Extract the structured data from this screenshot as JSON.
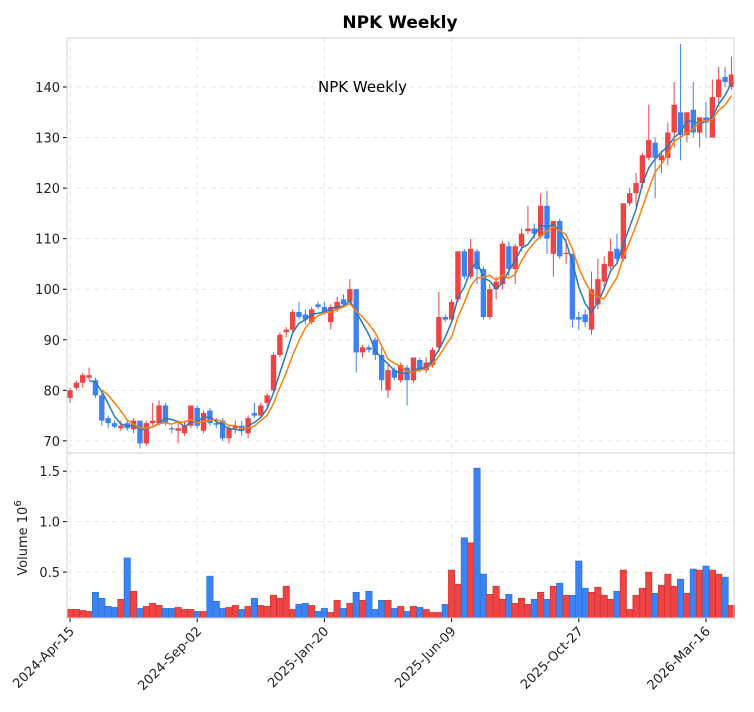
{
  "chart_data": {
    "type": "candlestick",
    "title": "NPK  Weekly",
    "annotation": "NPK  Weekly",
    "interval": "weekly",
    "start_date": "2024-04-15",
    "up_color": "#ef4444",
    "down_color": "#3b82f6",
    "ma_colors": [
      "#2a7ab9",
      "#ff7f0e"
    ],
    "ma_windows": [
      4,
      6
    ],
    "price_ylim": [
      67.6,
      149.7
    ],
    "price_yticks": [
      70,
      80,
      90,
      100,
      110,
      120,
      130,
      140
    ],
    "volume_ylabel": "Volume  10",
    "volume_ylabel_exp": "6",
    "volume_ylim": [
      0.045,
      1.68
    ],
    "volume_yticks": [
      0.5,
      1.0,
      1.5
    ],
    "volume_ytick_labels": [
      "0.5",
      "1.0",
      "1.5"
    ],
    "xticks": [
      {
        "index": 0,
        "label": "2024-Apr-15"
      },
      {
        "index": 20,
        "label": "2024-Sep-02"
      },
      {
        "index": 40,
        "label": "2025-Jan-20"
      },
      {
        "index": 60,
        "label": "2025-Jun-09"
      },
      {
        "index": 80,
        "label": "2025-Oct-27"
      },
      {
        "index": 100,
        "label": "2026-Mar-16"
      }
    ],
    "grid": true,
    "ohlc": [
      [
        78.5,
        80.5,
        77.5,
        80
      ],
      [
        80.5,
        82,
        80,
        81.5
      ],
      [
        81.5,
        83.5,
        80.5,
        83
      ],
      [
        82.5,
        84.5,
        82,
        83
      ],
      [
        82,
        82.5,
        78.5,
        79
      ],
      [
        79,
        79.5,
        73,
        74
      ],
      [
        74.5,
        75,
        72.5,
        73.5
      ],
      [
        73.5,
        74,
        72.5,
        72.8
      ],
      [
        72.5,
        74,
        72,
        73
      ],
      [
        73.5,
        74,
        72,
        72.5
      ],
      [
        72.3,
        74.5,
        71.5,
        74
      ],
      [
        74,
        74,
        68.5,
        69.5
      ],
      [
        69.5,
        74,
        69,
        73.5
      ],
      [
        73.5,
        77.5,
        73,
        74
      ],
      [
        73.5,
        78,
        73,
        77
      ],
      [
        77,
        77.5,
        73,
        73.5
      ],
      [
        72.5,
        73,
        71.5,
        72.3
      ],
      [
        72,
        74,
        69.5,
        72.5
      ],
      [
        71.5,
        74,
        71,
        73
      ],
      [
        73,
        77,
        72.5,
        77
      ],
      [
        76.5,
        77,
        72.5,
        73
      ],
      [
        72,
        76,
        71.5,
        75.5
      ],
      [
        76,
        76.5,
        73,
        73.5
      ],
      [
        73.5,
        74.5,
        72.5,
        73.2
      ],
      [
        74,
        74.5,
        70,
        70.5
      ],
      [
        70.5,
        73,
        69.5,
        72.5
      ],
      [
        72.5,
        74,
        71.5,
        73
      ],
      [
        73,
        74,
        71,
        72
      ],
      [
        71.5,
        75,
        70.5,
        74.5
      ],
      [
        75.5,
        77.5,
        74.5,
        75
      ],
      [
        75,
        77.5,
        74.5,
        77
      ],
      [
        77.5,
        79.5,
        76.5,
        79
      ],
      [
        80,
        87.5,
        79.5,
        87
      ],
      [
        87,
        91.5,
        86.5,
        91
      ],
      [
        91.5,
        92.5,
        90.5,
        92
      ],
      [
        92,
        96,
        91.5,
        95.5
      ],
      [
        95.5,
        97.5,
        94,
        94.5
      ],
      [
        95,
        96,
        93,
        94
      ],
      [
        93.5,
        96.5,
        93,
        96
      ],
      [
        97,
        97.5,
        96,
        96.5
      ],
      [
        96.5,
        97.5,
        95,
        95.5
      ],
      [
        93.5,
        97,
        92,
        96.5
      ],
      [
        96,
        98.5,
        95.5,
        97.5
      ],
      [
        98,
        99,
        96.5,
        97
      ],
      [
        97.5,
        102,
        97,
        100
      ],
      [
        100,
        100,
        83.5,
        87.5
      ],
      [
        87.5,
        89,
        86.5,
        88.5
      ],
      [
        88.5,
        89,
        87.5,
        88
      ],
      [
        90,
        90.5,
        86,
        87
      ],
      [
        87,
        88.5,
        80,
        82
      ],
      [
        80,
        85,
        78.5,
        84
      ],
      [
        84,
        84.5,
        82,
        82.5
      ],
      [
        82,
        85.5,
        81.5,
        85
      ],
      [
        84.5,
        85,
        77,
        82
      ],
      [
        82,
        86.5,
        81.5,
        86.5
      ],
      [
        86,
        86.5,
        83.5,
        84
      ],
      [
        84,
        86.5,
        83.5,
        85.5
      ],
      [
        85,
        88.5,
        84.5,
        88
      ],
      [
        88.5,
        99.5,
        88,
        94.5
      ],
      [
        94.5,
        95,
        93.5,
        94
      ],
      [
        94,
        98,
        93.5,
        97.5
      ],
      [
        98,
        107.5,
        97.5,
        107.5
      ],
      [
        107.5,
        108,
        102,
        102.5
      ],
      [
        102.5,
        110,
        102,
        108
      ],
      [
        107.5,
        108,
        101,
        104
      ],
      [
        104,
        104.5,
        94,
        94.5
      ],
      [
        94.5,
        101,
        94,
        100
      ],
      [
        100,
        102.5,
        98,
        101.5
      ],
      [
        101,
        109.5,
        100,
        109
      ],
      [
        108.5,
        109.5,
        102.5,
        104
      ],
      [
        104,
        109,
        101,
        108.5
      ],
      [
        108.5,
        112,
        107.5,
        111
      ],
      [
        111.5,
        116.5,
        111,
        112
      ],
      [
        112,
        113,
        110,
        111
      ],
      [
        110.5,
        119,
        110,
        116.5
      ],
      [
        116.5,
        119.5,
        107,
        110
      ],
      [
        107,
        113.5,
        102.5,
        113.5
      ],
      [
        113.5,
        114,
        106,
        106.5
      ],
      [
        107,
        110,
        105,
        107.2
      ],
      [
        107,
        107,
        92.5,
        94
      ],
      [
        94.5,
        95.5,
        92,
        94
      ],
      [
        95,
        96,
        92.5,
        93.5
      ],
      [
        92,
        103.5,
        91,
        100
      ],
      [
        97,
        106,
        96,
        102
      ],
      [
        101.5,
        106.5,
        100,
        105
      ],
      [
        104.5,
        110,
        104,
        107.5
      ],
      [
        108,
        111,
        105,
        106
      ],
      [
        106,
        117,
        105.5,
        117
      ],
      [
        117,
        120,
        116.5,
        119
      ],
      [
        119,
        123,
        116.5,
        121
      ],
      [
        121,
        127,
        120,
        126.5
      ],
      [
        126,
        136.5,
        125.5,
        129.5
      ],
      [
        129,
        130,
        118,
        126
      ],
      [
        125.5,
        127.5,
        123,
        126.5
      ],
      [
        126,
        133,
        124.5,
        131
      ],
      [
        131,
        141,
        128,
        136.5
      ],
      [
        135,
        148.5,
        125.5,
        130.5
      ],
      [
        130.5,
        135,
        129,
        135
      ],
      [
        135.5,
        141,
        130,
        131
      ],
      [
        131,
        134,
        128,
        134
      ],
      [
        134,
        137,
        130,
        133
      ],
      [
        130,
        141.5,
        130,
        138
      ],
      [
        138,
        144,
        136,
        141.5
      ],
      [
        142,
        144,
        140,
        141
      ],
      [
        140,
        146,
        139.5,
        142.5
      ]
    ],
    "volume": [
      0.13,
      0.13,
      0.12,
      0.11,
      0.3,
      0.24,
      0.16,
      0.15,
      0.23,
      0.64,
      0.31,
      0.14,
      0.16,
      0.19,
      0.17,
      0.14,
      0.14,
      0.15,
      0.13,
      0.13,
      0.11,
      0.11,
      0.46,
      0.21,
      0.14,
      0.15,
      0.17,
      0.13,
      0.16,
      0.24,
      0.17,
      0.16,
      0.27,
      0.24,
      0.36,
      0.13,
      0.18,
      0.19,
      0.17,
      0.11,
      0.14,
      0.1,
      0.22,
      0.14,
      0.19,
      0.3,
      0.22,
      0.31,
      0.13,
      0.22,
      0.22,
      0.14,
      0.16,
      0.11,
      0.16,
      0.15,
      0.13,
      0.1,
      0.1,
      0.18,
      0.52,
      0.38,
      0.84,
      0.79,
      1.53,
      0.48,
      0.28,
      0.36,
      0.23,
      0.28,
      0.19,
      0.24,
      0.18,
      0.23,
      0.3,
      0.23,
      0.36,
      0.39,
      0.27,
      0.27,
      0.61,
      0.34,
      0.3,
      0.35,
      0.27,
      0.23,
      0.31,
      0.52,
      0.13,
      0.27,
      0.34,
      0.5,
      0.29,
      0.37,
      0.48,
      0.36,
      0.43,
      0.29,
      0.53,
      0.52,
      0.56,
      0.52,
      0.48,
      0.45,
      0.17
    ]
  }
}
